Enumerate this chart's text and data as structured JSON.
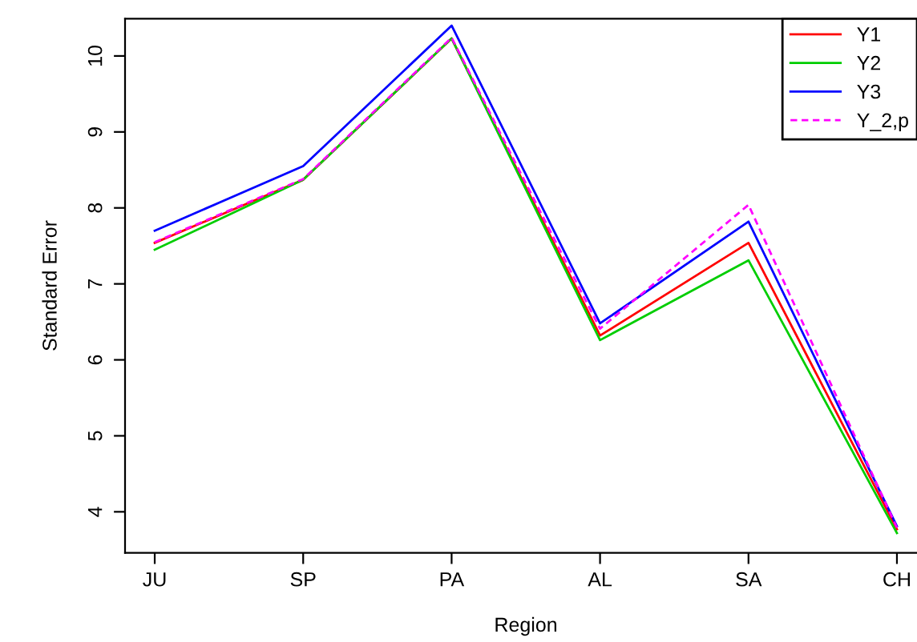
{
  "chart_data": {
    "type": "line",
    "xlabel": "Region",
    "ylabel": "Standard Error",
    "categories": [
      "JU",
      "SP",
      "PA",
      "AL",
      "SA",
      "CH"
    ],
    "series": [
      {
        "name": "Y1",
        "color": "#ff0000",
        "line_style": "solid",
        "values": [
          7.54,
          8.37,
          10.23,
          6.32,
          7.54,
          3.77
        ]
      },
      {
        "name": "Y2",
        "color": "#00cd00",
        "line_style": "solid",
        "values": [
          7.45,
          8.37,
          10.23,
          6.26,
          7.31,
          3.72
        ]
      },
      {
        "name": "Y3",
        "color": "#0000ff",
        "line_style": "solid",
        "values": [
          7.7,
          8.55,
          10.4,
          6.48,
          7.82,
          3.81
        ]
      },
      {
        "name": "Y_2,p",
        "color": "#ff00ff",
        "line_style": "dashed",
        "values": [
          7.55,
          8.38,
          10.24,
          6.41,
          8.04,
          3.79
        ]
      }
    ],
    "ylim": [
      3.46,
      10.49
    ],
    "yticks": [
      4,
      5,
      6,
      7,
      8,
      9,
      10
    ],
    "grid": false,
    "legend": "top right",
    "marker": "none"
  }
}
